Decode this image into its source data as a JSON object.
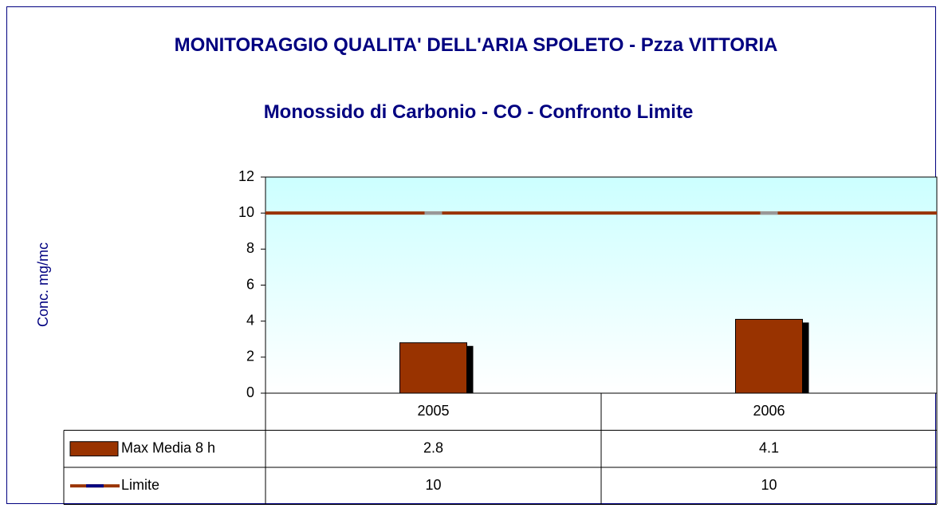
{
  "chart_data": {
    "type": "bar",
    "title": "MONITORAGGIO QUALITA' DELL'ARIA SPOLETO - Pzza VITTORIA",
    "subtitle": "Monossido di Carbonio - CO - Confronto Limite",
    "y_label": "Conc. mg/mc",
    "categories": [
      "2005",
      "2006"
    ],
    "series": [
      {
        "name": "Max Media 8 h",
        "type": "bar",
        "color": "#993300",
        "values": [
          2.8,
          4.1
        ]
      },
      {
        "name": "Limite",
        "type": "line",
        "color": "#993300",
        "values": [
          10,
          10
        ]
      }
    ],
    "ylim": [
      0,
      12
    ],
    "yticks": [
      0,
      2,
      4,
      6,
      8,
      10,
      12
    ],
    "data_table": true
  }
}
